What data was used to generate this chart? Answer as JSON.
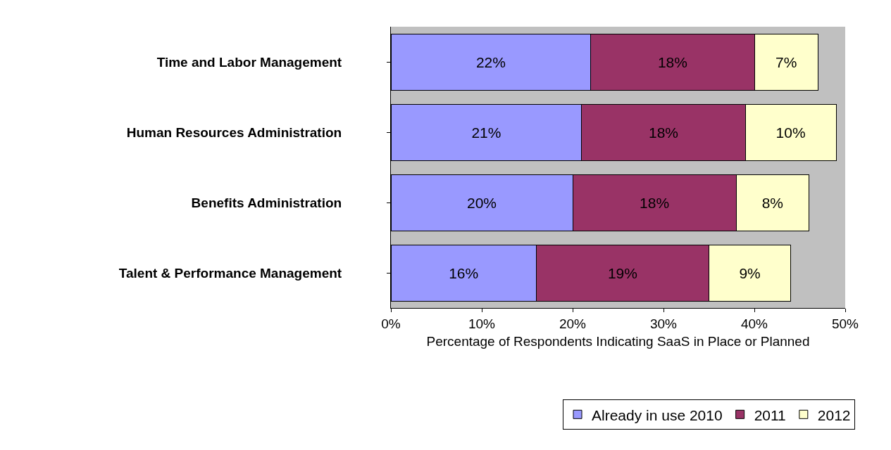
{
  "chart_data": {
    "type": "bar",
    "orientation": "horizontal",
    "stacked": true,
    "xlabel": "Percentage of Respondents Indicating SaaS in Place or Planned",
    "categories": [
      "Time and Labor Management",
      "Human Resources Administration",
      "Benefits Administration",
      "Talent & Performance Management"
    ],
    "series": [
      {
        "name": "Already in use 2010",
        "color": "#9999ff",
        "values": [
          22,
          21,
          20,
          16
        ],
        "value_labels": [
          "22%",
          "21%",
          "20%",
          "16%"
        ]
      },
      {
        "name": "2011",
        "color": "#993366",
        "values": [
          18,
          18,
          18,
          19
        ],
        "value_labels": [
          "18%",
          "18%",
          "18%",
          "19%"
        ]
      },
      {
        "name": "2012",
        "color": "#ffffcc",
        "values": [
          7,
          10,
          8,
          9
        ],
        "value_labels": [
          "7%",
          "10%",
          "8%",
          "9%"
        ]
      }
    ],
    "xlim": [
      0,
      50
    ],
    "xticks": [
      {
        "value": 0,
        "label": "0%"
      },
      {
        "value": 10,
        "label": "10%"
      },
      {
        "value": 20,
        "label": "20%"
      },
      {
        "value": 30,
        "label": "30%"
      },
      {
        "value": 40,
        "label": "40%"
      },
      {
        "value": 50,
        "label": "50%"
      }
    ],
    "grid": false,
    "legend": "bottom"
  }
}
